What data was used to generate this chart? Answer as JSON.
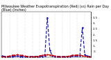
{
  "title": "Milwaukee Weather Evapotranspiration (Red) (vs) Rain per Day (Blue) (Inches)",
  "evap": [
    0.02,
    0.03,
    0.06,
    0.1,
    0.15,
    0.18,
    0.2,
    0.18,
    0.14,
    0.08,
    0.04,
    0.02,
    0.02,
    0.03,
    0.07,
    0.11,
    0.16,
    0.19,
    0.21,
    0.19,
    0.14,
    0.09,
    0.04,
    0.02,
    0.02,
    0.03,
    0.06,
    0.1,
    0.15,
    0.18,
    0.19,
    0.18,
    0.13,
    0.08,
    0.04,
    0.02
  ],
  "rain": [
    0.1,
    0.05,
    0.05,
    0.06,
    0.07,
    0.08,
    0.08,
    0.07,
    0.06,
    0.05,
    0.05,
    0.04,
    0.04,
    0.04,
    0.05,
    0.06,
    0.07,
    0.1,
    3.5,
    0.6,
    0.1,
    0.06,
    0.05,
    0.04,
    0.04,
    0.04,
    0.05,
    0.06,
    0.08,
    0.09,
    0.1,
    0.08,
    2.6,
    0.2,
    0.08,
    0.06
  ],
  "n_points": 36,
  "ylim": [
    0,
    4.0
  ],
  "ytick_values": [
    0.5,
    1.0,
    1.5,
    2.0,
    2.5,
    3.0,
    3.5
  ],
  "ytick_labels": [
    ".5",
    "1.",
    "1.5",
    "2.",
    "2.5",
    "3.",
    "3.5"
  ],
  "evap_color": "#cc0000",
  "rain_color": "#0000cc",
  "bg_color": "#ffffff",
  "title_fontsize": 3.5,
  "tick_fontsize": 2.8,
  "grid_color": "#aaaaaa",
  "grid_positions": [
    0,
    3,
    6,
    9,
    12,
    15,
    18,
    21,
    24,
    27,
    30,
    33
  ]
}
